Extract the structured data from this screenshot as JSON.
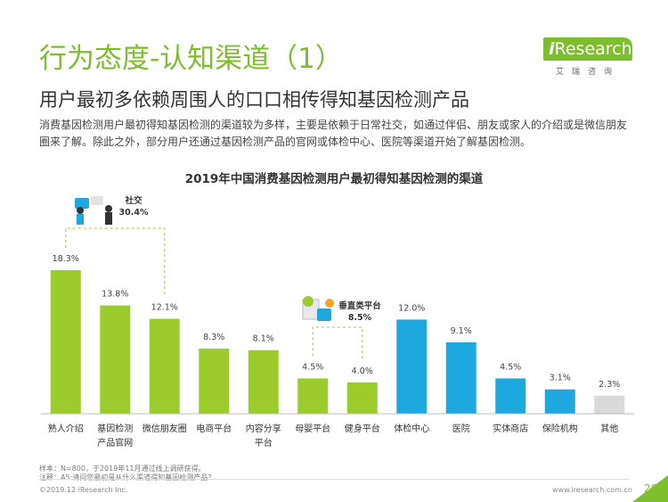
{
  "header": {
    "title": "行为态度-认知渠道（1）",
    "subtitle": "用户最初多依赖周围人的口口相传得知基因检测产品",
    "logo_text_i": "i",
    "logo_text_rest": "Research",
    "logo_sub": "艾瑞咨询"
  },
  "description": "消费基因检测用户最初得知基因检测的渠道较为多样，主要是依赖于日常社交，如通过伴侣、朋友或家人的介绍或是微信朋友圈来了解。除此之外，部分用户还通过基因检测产品的官网或体检中心、医院等渠道开始了解基因检测。",
  "chart_data": {
    "type": "bar",
    "title": "2019年中国消费基因检测用户最初得知基因检测的渠道",
    "unit": "%",
    "categories": [
      [
        "熟人介绍"
      ],
      [
        "基因检测",
        "产品官网"
      ],
      [
        "微信朋友圈"
      ],
      [
        "电商平台"
      ],
      [
        "内容分享",
        "平台"
      ],
      [
        "母婴平台"
      ],
      [
        "健身平台"
      ],
      [
        "体检中心"
      ],
      [
        "医院"
      ],
      [
        "实体商店"
      ],
      [
        "保险机构"
      ],
      [
        "其他"
      ]
    ],
    "values": [
      18.3,
      13.8,
      12.1,
      8.3,
      8.1,
      4.5,
      4.0,
      12.0,
      9.1,
      4.5,
      3.1,
      2.3
    ],
    "value_labels": [
      "18.3%",
      "13.8%",
      "12.1%",
      "8.3%",
      "8.1%",
      "4.5%",
      "4.0%",
      "12.0%",
      "9.1%",
      "4.5%",
      "3.1%",
      "2.3%"
    ],
    "groups": [
      {
        "name": "社交",
        "value_label": "30.4%",
        "members": [
          0,
          2
        ]
      },
      {
        "name": "垂直类平台",
        "value_label": "8.5%",
        "members": [
          5,
          6
        ]
      }
    ],
    "colors": [
      "#9ccc2c",
      "#9ccc2c",
      "#9ccc2c",
      "#9ccc2c",
      "#9ccc2c",
      "#9ccc2c",
      "#9ccc2c",
      "#1ea8e0",
      "#1ea8e0",
      "#1ea8e0",
      "#1ea8e0",
      "#d9d9d9"
    ],
    "ylim": [
      0,
      18.3
    ],
    "grid": false,
    "legend": "none"
  },
  "footnotes": [
    "样本：N=800，于2019年11月通过线上调研获得。",
    "注释：A5:请问您最初是从什么渠道得知基因检测产品？"
  ],
  "footer": {
    "copyright": "©2019.12 iResearch Inc.",
    "website": "www.iresearch.com.cn",
    "page": "28"
  },
  "accent_color": "#7dbe2c"
}
